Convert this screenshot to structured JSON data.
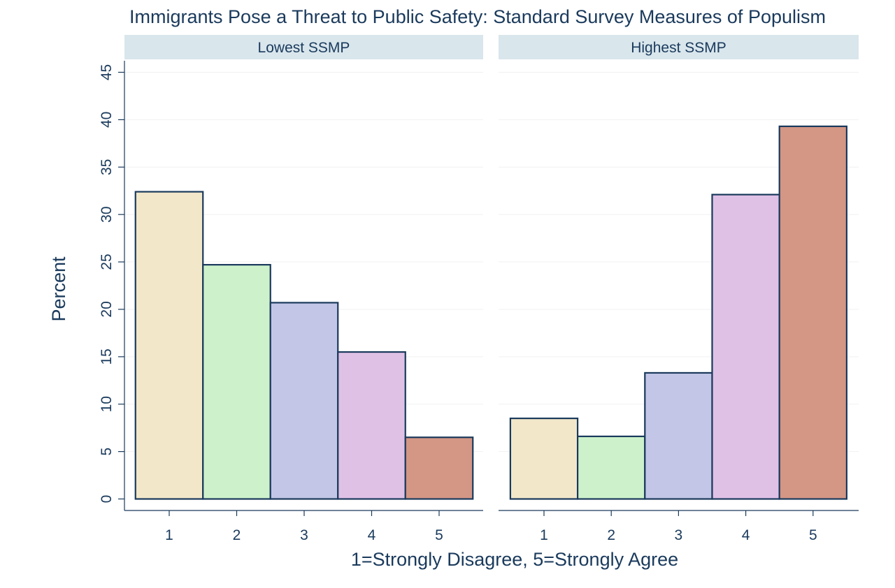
{
  "chart_data": {
    "type": "bar",
    "title": "Immigrants Pose a Threat to Public Safety: Standard Survey Measures of Populism",
    "xlabel": "1=Strongly Disagree, 5=Strongly Agree",
    "ylabel": "Percent",
    "ylim": [
      0,
      45
    ],
    "yticks": [
      0,
      5,
      10,
      15,
      20,
      25,
      30,
      35,
      40,
      45
    ],
    "categories": [
      "1",
      "2",
      "3",
      "4",
      "5"
    ],
    "grid": true,
    "colors": [
      "#f2e7c9",
      "#cdf2cb",
      "#c3c6e6",
      "#e0c1e6",
      "#d49685"
    ],
    "edge_color": "#1a3a5c",
    "panels": [
      {
        "name": "Lowest SSMP",
        "values": [
          32.4,
          24.7,
          20.7,
          15.5,
          6.5
        ]
      },
      {
        "name": "Highest SSMP",
        "values": [
          8.5,
          6.6,
          13.3,
          32.1,
          39.3
        ]
      }
    ]
  }
}
